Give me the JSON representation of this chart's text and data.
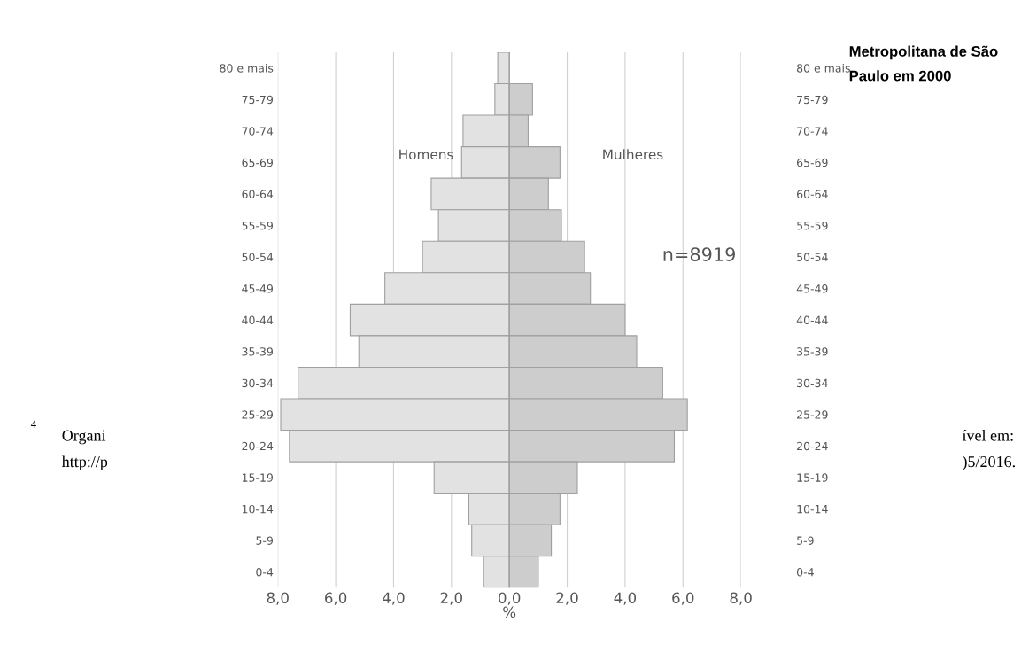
{
  "chart_data": {
    "type": "bar",
    "orientation": "horizontal",
    "stacked": true,
    "title": "Metropolitana de São Paulo em 2000",
    "categories": [
      "80 e mais",
      "75-79",
      "70-74",
      "65-69",
      "60-64",
      "55-59",
      "50-54",
      "45-49",
      "40-44",
      "35-39",
      "30-34",
      "25-29",
      "20-24",
      "15-19",
      "10-14",
      "5-9",
      "0-4"
    ],
    "series": [
      {
        "color": "#e2e2e2",
        "values": [
          -0.4,
          -0.5,
          -1.6,
          -1.65,
          -2.7,
          -2.45,
          -3.0,
          -4.3,
          -5.5,
          -5.2,
          -7.3,
          -7.9,
          -7.6,
          -2.6,
          -1.4,
          -1.3,
          -0.9
        ]
      },
      {
        "color": "#cdcdcd",
        "values": [
          null,
          0.8,
          0.65,
          1.75,
          1.35,
          1.8,
          2.6,
          2.8,
          4.0,
          4.4,
          5.3,
          6.15,
          5.7,
          2.35,
          1.75,
          1.45,
          1.0
        ]
      }
    ],
    "xlabel": "%",
    "xlim": [
      -8,
      8
    ],
    "xticks": [
      {
        "value": -8,
        "label": "8,0"
      },
      {
        "value": -6,
        "label": "6,0"
      },
      {
        "value": -4,
        "label": "4,0"
      },
      {
        "value": -2,
        "label": "2,0"
      },
      {
        "value": 0,
        "label": "0,0"
      },
      {
        "value": 2,
        "label": "2,0"
      },
      {
        "value": 4,
        "label": "4,0"
      },
      {
        "value": 6,
        "label": "6,0"
      },
      {
        "value": 8,
        "label": "8,0"
      }
    ],
    "grid": "x",
    "annotations": [
      "Homens",
      "Mulheres",
      "n=8919",
      "4",
      "Organi",
      "ível em:",
      "http://p",
      ")5/2016."
    ]
  }
}
